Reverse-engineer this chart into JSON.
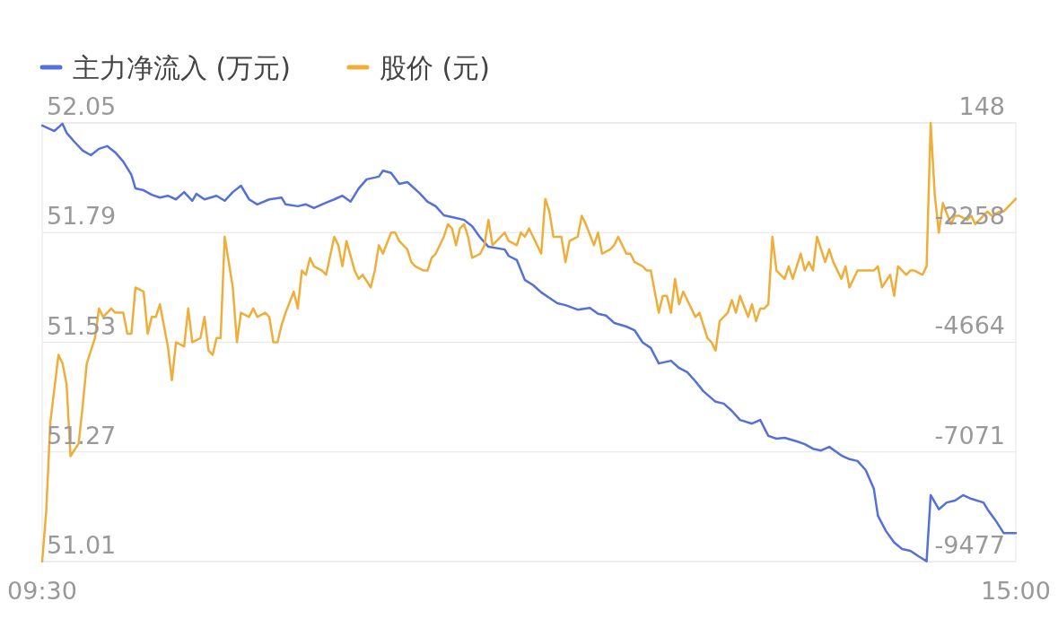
{
  "chart_data": {
    "type": "line",
    "xlim": [
      9.5,
      15
    ],
    "xticks": [
      {
        "value": 9.5,
        "label": "09:30"
      },
      {
        "value": 15,
        "label": "15:00"
      }
    ],
    "ylim": [
      51.01,
      52.05
    ],
    "yticks": [
      51.01,
      51.27,
      51.53,
      51.79,
      52.05
    ],
    "y2lim": [
      -9477,
      148
    ],
    "y2ticks": [
      -9477,
      -7071,
      -4664,
      -2258,
      148
    ],
    "grid": "y",
    "legend": "top left",
    "line_style": "solid",
    "marker": "none",
    "series": [
      {
        "name": "主力净流入 (万元)",
        "color": "#5470d9",
        "axis": "y2",
        "x": [
          9.5,
          9.569,
          9.615,
          9.638,
          9.683,
          9.729,
          9.775,
          9.821,
          9.867,
          9.913,
          9.958,
          10.004,
          10.027,
          10.073,
          10.119,
          10.165,
          10.21,
          10.256,
          10.302,
          10.348,
          10.371,
          10.417,
          10.485,
          10.531,
          10.577,
          10.623,
          10.669,
          10.715,
          10.783,
          10.852,
          10.875,
          10.944,
          10.99,
          11.035,
          11.104,
          11.15,
          11.196,
          11.242,
          11.288,
          11.333,
          11.402,
          11.425,
          11.471,
          11.517,
          11.563,
          11.631,
          11.677,
          11.723,
          11.769,
          11.838,
          11.883,
          11.929,
          11.975,
          12.021,
          12.113,
          12.135,
          12.181,
          12.227,
          12.273,
          12.319,
          12.365,
          12.41,
          12.456,
          12.525,
          12.594,
          12.64,
          12.685,
          12.731,
          12.8,
          12.846,
          12.892,
          12.938,
          12.983,
          13.052,
          13.098,
          13.144,
          13.19,
          13.235,
          13.304,
          13.35,
          13.396,
          13.442,
          13.51,
          13.556,
          13.602,
          13.648,
          13.694,
          13.763,
          13.808,
          13.854,
          13.9,
          13.946,
          14.015,
          14.06,
          14.106,
          14.152,
          14.198,
          14.221,
          14.267,
          14.313,
          14.358,
          14.404,
          14.45,
          14.496,
          14.519,
          14.565,
          14.61,
          14.656,
          14.702,
          14.748,
          14.817,
          14.84,
          14.885,
          14.931,
          15
        ],
        "values": [
          90,
          -30,
          130,
          -70,
          -270,
          -460,
          -560,
          -420,
          -360,
          -500,
          -700,
          -990,
          -1290,
          -1330,
          -1430,
          -1490,
          -1450,
          -1530,
          -1370,
          -1560,
          -1410,
          -1530,
          -1450,
          -1560,
          -1370,
          -1230,
          -1530,
          -1640,
          -1530,
          -1490,
          -1640,
          -1680,
          -1640,
          -1720,
          -1600,
          -1530,
          -1450,
          -1580,
          -1290,
          -1090,
          -1030,
          -900,
          -950,
          -1190,
          -1150,
          -1390,
          -1580,
          -1680,
          -1880,
          -1940,
          -1980,
          -2120,
          -2370,
          -2570,
          -2630,
          -2770,
          -2860,
          -3300,
          -3410,
          -3570,
          -3690,
          -3810,
          -3850,
          -3950,
          -3910,
          -4040,
          -4080,
          -4240,
          -4320,
          -4400,
          -4670,
          -4790,
          -5130,
          -5070,
          -5230,
          -5320,
          -5520,
          -5740,
          -5970,
          -6010,
          -6170,
          -6370,
          -6450,
          -6370,
          -6720,
          -6780,
          -6760,
          -6840,
          -6900,
          -7000,
          -7040,
          -6960,
          -7150,
          -7230,
          -7270,
          -7470,
          -7880,
          -8470,
          -8810,
          -9060,
          -9200,
          -9240,
          -9360,
          -9470,
          -8020,
          -8330,
          -8180,
          -8140,
          -8020,
          -8100,
          -8180,
          -8330,
          -8570,
          -8850,
          -8850
        ]
      },
      {
        "name": "股价 (元)",
        "color": "#efae3a",
        "x": [
          9.5,
          9.523,
          9.546,
          9.592,
          9.615,
          9.638,
          9.66,
          9.706,
          9.729,
          9.752,
          9.798,
          9.821,
          9.844,
          9.867,
          9.89,
          9.913,
          9.958,
          9.981,
          10.004,
          10.027,
          10.073,
          10.096,
          10.119,
          10.142,
          10.165,
          10.21,
          10.233,
          10.256,
          10.302,
          10.325,
          10.348,
          10.394,
          10.417,
          10.44,
          10.463,
          10.485,
          10.508,
          10.531,
          10.554,
          10.577,
          10.6,
          10.623,
          10.669,
          10.692,
          10.715,
          10.76,
          10.783,
          10.806,
          10.829,
          10.852,
          10.875,
          10.921,
          10.944,
          10.967,
          10.99,
          11.013,
          11.035,
          11.081,
          11.104,
          11.15,
          11.173,
          11.196,
          11.219,
          11.265,
          11.288,
          11.31,
          11.356,
          11.379,
          11.402,
          11.425,
          11.471,
          11.494,
          11.517,
          11.563,
          11.585,
          11.608,
          11.654,
          11.677,
          11.7,
          11.723,
          11.769,
          11.792,
          11.815,
          11.838,
          11.86,
          11.883,
          11.906,
          11.929,
          11.975,
          11.998,
          12.021,
          12.044,
          12.09,
          12.113,
          12.135,
          12.181,
          12.204,
          12.227,
          12.25,
          12.273,
          12.319,
          12.342,
          12.365,
          12.388,
          12.433,
          12.456,
          12.479,
          12.525,
          12.548,
          12.571,
          12.617,
          12.64,
          12.663,
          12.708,
          12.731,
          12.754,
          12.8,
          12.823,
          12.846,
          12.892,
          12.915,
          12.938,
          12.983,
          13.006,
          13.029,
          13.052,
          13.075,
          13.098,
          13.121,
          13.167,
          13.19,
          13.213,
          13.258,
          13.281,
          13.304,
          13.327,
          13.373,
          13.396,
          13.419,
          13.442,
          13.488,
          13.51,
          13.533,
          13.556,
          13.579,
          13.602,
          13.625,
          13.648,
          13.694,
          13.717,
          13.74,
          13.785,
          13.808,
          13.831,
          13.854,
          13.877,
          13.923,
          13.946,
          13.969,
          14.015,
          14.038,
          14.06,
          14.106,
          14.129,
          14.152,
          14.198,
          14.221,
          14.244,
          14.29,
          14.313,
          14.335,
          14.381,
          14.404,
          14.427,
          14.473,
          14.496,
          14.519,
          14.542,
          14.565,
          14.588,
          14.633,
          14.656,
          14.679,
          14.725,
          14.748,
          14.771,
          14.817,
          14.84,
          14.863,
          14.908,
          14.931,
          14.954,
          15
        ],
        "values": [
          51.01,
          51.13,
          51.34,
          51.5,
          51.48,
          51.43,
          51.26,
          51.29,
          51.38,
          51.48,
          51.54,
          51.61,
          51.59,
          51.6,
          51.61,
          51.6,
          51.6,
          51.55,
          51.55,
          51.66,
          51.65,
          51.55,
          51.59,
          51.59,
          51.62,
          51.52,
          51.44,
          51.53,
          51.52,
          51.61,
          51.53,
          51.54,
          51.59,
          51.51,
          51.5,
          51.54,
          51.54,
          51.78,
          51.72,
          51.66,
          51.53,
          51.6,
          51.59,
          51.61,
          51.59,
          51.6,
          51.59,
          51.53,
          51.53,
          51.57,
          51.6,
          51.65,
          51.61,
          51.7,
          51.69,
          51.73,
          51.71,
          51.7,
          51.69,
          51.78,
          51.76,
          51.71,
          51.77,
          51.7,
          51.68,
          51.69,
          51.66,
          51.7,
          51.76,
          51.74,
          51.79,
          51.79,
          51.77,
          51.75,
          51.72,
          51.71,
          51.7,
          51.7,
          51.73,
          51.74,
          51.78,
          51.81,
          51.8,
          51.76,
          51.8,
          51.81,
          51.78,
          51.73,
          51.74,
          51.76,
          51.82,
          51.76,
          51.78,
          51.79,
          51.77,
          51.76,
          51.79,
          51.78,
          51.8,
          51.78,
          51.74,
          51.87,
          51.84,
          51.78,
          51.78,
          51.72,
          51.77,
          51.78,
          51.83,
          51.81,
          51.76,
          51.79,
          51.74,
          51.75,
          51.76,
          51.78,
          51.74,
          51.74,
          51.72,
          51.71,
          51.7,
          51.7,
          51.6,
          51.64,
          51.64,
          51.6,
          51.68,
          51.62,
          51.65,
          51.61,
          51.59,
          51.6,
          51.54,
          51.53,
          51.51,
          51.58,
          51.6,
          51.63,
          51.6,
          51.64,
          51.59,
          51.62,
          51.58,
          51.61,
          51.61,
          51.62,
          51.78,
          51.7,
          51.68,
          51.71,
          51.68,
          51.74,
          51.7,
          51.72,
          51.7,
          51.78,
          51.72,
          51.75,
          51.72,
          51.68,
          51.71,
          51.66,
          51.7,
          51.7,
          51.7,
          51.7,
          51.71,
          51.66,
          51.69,
          51.64,
          51.71,
          51.69,
          51.7,
          51.7,
          51.69,
          51.71,
          52.05,
          51.88,
          51.79,
          51.86,
          51.81,
          51.83,
          51.83,
          51.82,
          51.83,
          51.81,
          51.83,
          51.84,
          51.83,
          51.84,
          51.84,
          51.85,
          51.87
        ]
      }
    ]
  }
}
